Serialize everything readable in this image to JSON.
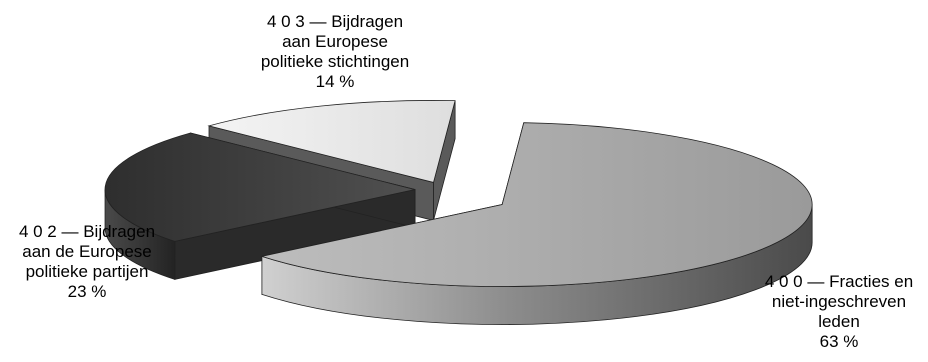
{
  "chart_data": {
    "type": "pie",
    "style": "3d-exploded",
    "title": "",
    "slices": [
      {
        "code": "4 0 0",
        "label_lines": [
          "4 0 0 — Fracties en",
          "niet-ingeschreven",
          "leden",
          "63 %"
        ],
        "value": 63,
        "color": "#a8a8a8"
      },
      {
        "code": "4 0 2",
        "label_lines": [
          "4 0 2 — Bijdragen",
          "aan de Europese",
          "politieke partijen",
          "23 %"
        ],
        "value": 23,
        "color": "#3a3a3a"
      },
      {
        "code": "4 0 3",
        "label_lines": [
          "4 0 3 — Bijdragen",
          "aan Europese",
          "politieke stichtingen",
          "14 %"
        ],
        "value": 14,
        "color": "#ececec"
      }
    ]
  }
}
